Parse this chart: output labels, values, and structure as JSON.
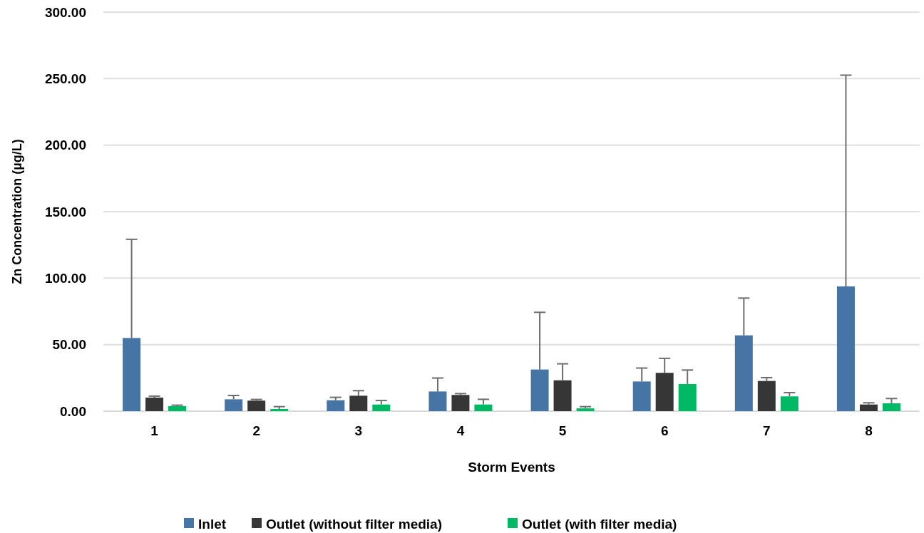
{
  "chart_data": {
    "type": "bar",
    "xlabel": "Storm Events",
    "ylabel": "Zn Concentration (µg/L)",
    "categories": [
      "1",
      "2",
      "3",
      "4",
      "5",
      "6",
      "7",
      "8"
    ],
    "series": [
      {
        "name": "Inlet",
        "color": "#4674a4",
        "values": [
          55.0,
          8.9,
          8.2,
          14.8,
          31.3,
          22.3,
          57.0,
          93.8
        ],
        "errors": [
          [
            55.0,
            129.2
          ],
          [
            8.9,
            11.8
          ],
          [
            8.2,
            10.4
          ],
          [
            14.8,
            24.9
          ],
          [
            31.3,
            74.3
          ],
          [
            22.3,
            32.4
          ],
          [
            57.0,
            85.0
          ],
          [
            93.8,
            252.6
          ]
        ]
      },
      {
        "name": "Outlet (without filter media)",
        "color": "#363636",
        "values": [
          10.2,
          7.9,
          11.6,
          12.2,
          23.2,
          28.8,
          22.7,
          5.0
        ],
        "errors": [
          [
            10.2,
            11.3
          ],
          [
            7.9,
            8.8
          ],
          [
            11.6,
            15.4
          ],
          [
            12.2,
            13.2
          ],
          [
            23.2,
            35.6
          ],
          [
            28.8,
            39.7
          ],
          [
            22.7,
            25.2
          ],
          [
            5.0,
            6.3
          ]
        ]
      },
      {
        "name": "Outlet (with filter media)",
        "color": "#00b964",
        "values": [
          3.8,
          1.6,
          5.0,
          5.0,
          2.1,
          20.4,
          11.1,
          5.9
        ],
        "errors": [
          [
            3.8,
            4.5
          ],
          [
            1.6,
            3.4
          ],
          [
            5.0,
            8.0
          ],
          [
            5.0,
            8.9
          ],
          [
            2.1,
            3.4
          ],
          [
            20.4,
            30.9
          ],
          [
            11.1,
            13.9
          ],
          [
            5.9,
            9.5
          ]
        ]
      }
    ],
    "ylim": [
      0,
      300
    ],
    "yticks": [
      {
        "value": 0,
        "label": "0.00"
      },
      {
        "value": 50,
        "label": "50.00"
      },
      {
        "value": 100,
        "label": "100.00"
      },
      {
        "value": 150,
        "label": "150.00"
      },
      {
        "value": 200,
        "label": "200.00"
      },
      {
        "value": 250,
        "label": "250.00"
      },
      {
        "value": 300,
        "label": "300.00"
      }
    ],
    "grid": "y",
    "legend": "bottom"
  }
}
